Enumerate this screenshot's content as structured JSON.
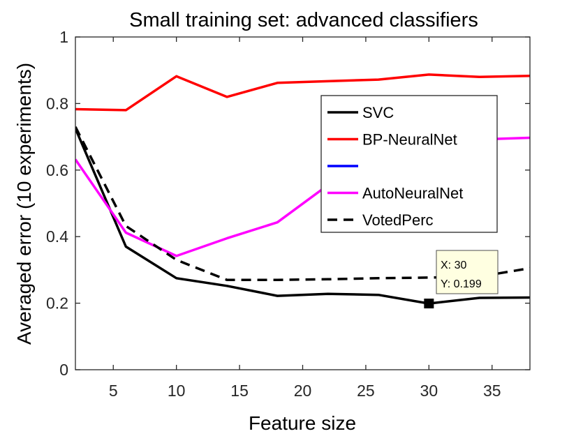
{
  "chart_data": {
    "type": "line",
    "title": "Small training set: advanced classifiers",
    "xlabel": "Feature size",
    "ylabel": "Averaged error (10 experiments)",
    "xlim": [
      2,
      38
    ],
    "ylim": [
      0,
      1
    ],
    "xticks": [
      5,
      10,
      15,
      20,
      25,
      30,
      35
    ],
    "yticks": [
      0,
      0.2,
      0.4,
      0.6,
      0.8,
      1
    ],
    "ytick_labels": [
      "0",
      "0.2",
      "0.4",
      "0.6",
      "0.8",
      "1"
    ],
    "grid": false,
    "legend_position": "upper right",
    "series": [
      {
        "name": "SVC",
        "color": "#000000",
        "dash": "solid",
        "x": [
          2,
          6,
          10,
          14,
          18,
          22,
          26,
          30,
          34,
          38
        ],
        "y": [
          0.725,
          0.37,
          0.275,
          0.252,
          0.222,
          0.228,
          0.225,
          0.199,
          0.216,
          0.217
        ]
      },
      {
        "name": "BP-NeuralNet",
        "color": "#ff0000",
        "dash": "solid",
        "x": [
          2,
          6,
          10,
          14,
          18,
          22,
          26,
          30,
          34,
          38
        ],
        "y": [
          0.783,
          0.78,
          0.882,
          0.82,
          0.862,
          0.867,
          0.872,
          0.887,
          0.88,
          0.883
        ]
      },
      {
        "name": "",
        "color": "#0000ff",
        "dash": "solid",
        "x": [],
        "y": []
      },
      {
        "name": "AutoNeuralNet",
        "color": "#ff00ff",
        "dash": "solid",
        "x": [
          2,
          6,
          10,
          14,
          18,
          22,
          26,
          30,
          34,
          38
        ],
        "y": [
          0.632,
          0.412,
          0.342,
          0.395,
          0.443,
          0.555,
          0.65,
          0.685,
          0.692,
          0.697
        ]
      },
      {
        "name": "VotedPerc",
        "color": "#000000",
        "dash": "dashed",
        "x": [
          2,
          6,
          10,
          14,
          18,
          22,
          26,
          30,
          34,
          38
        ],
        "y": [
          0.73,
          0.432,
          0.33,
          0.27,
          0.27,
          0.272,
          0.275,
          0.277,
          0.28,
          0.305
        ]
      }
    ],
    "datatip": {
      "x": 30,
      "y": 0.199,
      "line1": "X: 30",
      "line2": "Y: 0.199"
    }
  }
}
